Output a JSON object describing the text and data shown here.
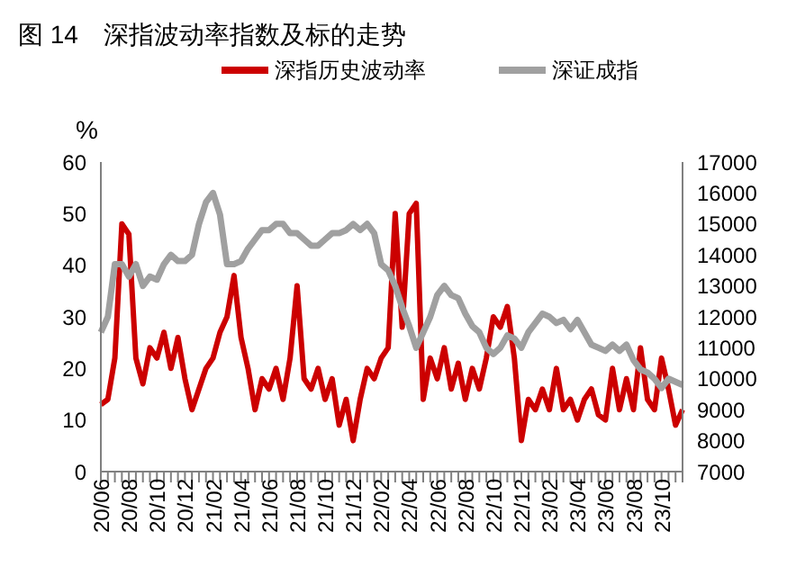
{
  "chart_data": {
    "type": "line",
    "title": "图 14　深指波动率指数及标的走势",
    "ylabel": "%",
    "legend": "top",
    "categories": [
      "20/06",
      null,
      null,
      null,
      "20/08",
      null,
      null,
      null,
      "20/10",
      null,
      null,
      null,
      "20/12",
      null,
      null,
      null,
      "21/02",
      null,
      null,
      null,
      "21/04",
      null,
      null,
      null,
      "21/06",
      null,
      null,
      null,
      "21/08",
      null,
      null,
      null,
      "21/10",
      null,
      null,
      null,
      "21/12",
      null,
      null,
      null,
      "22/02",
      null,
      null,
      null,
      "22/04",
      null,
      null,
      null,
      "22/06",
      null,
      null,
      null,
      "22/08",
      null,
      null,
      null,
      "22/10",
      null,
      null,
      null,
      "22/12",
      null,
      null,
      null,
      "23/02",
      null,
      null,
      null,
      "23/04",
      null,
      null,
      null,
      "23/06",
      null,
      null,
      null,
      "23/08",
      null,
      null,
      null,
      "23/10",
      null,
      null,
      null
    ],
    "ylim": [
      0,
      60
    ],
    "yticks": [
      0,
      10,
      20,
      30,
      40,
      50,
      60
    ],
    "y2lim": [
      7000,
      17000
    ],
    "y2ticks": [
      7000,
      8000,
      9000,
      10000,
      11000,
      12000,
      13000,
      14000,
      15000,
      16000,
      17000
    ],
    "series": [
      {
        "name": "深指历史波动率",
        "color": "#cc0000",
        "values": [
          13,
          14,
          22,
          48,
          46,
          22,
          17,
          24,
          22,
          27,
          20,
          26,
          18,
          12,
          16,
          20,
          22,
          27,
          30,
          38,
          26,
          20,
          12,
          18,
          16,
          20,
          14,
          22,
          36,
          18,
          16,
          20,
          14,
          18,
          9,
          14,
          6,
          14,
          20,
          18,
          22,
          24,
          50,
          28,
          50,
          52,
          14,
          22,
          18,
          24,
          16,
          21,
          14,
          20,
          16,
          22,
          30,
          28,
          32,
          22,
          6,
          14,
          12,
          16,
          12,
          20,
          12,
          14,
          10,
          14,
          16,
          11,
          10,
          20,
          12,
          18,
          12,
          24,
          14,
          12,
          22,
          16,
          9,
          12
        ]
      },
      {
        "name": "深证成指",
        "color": "#a0a0a0",
        "axis": "y2",
        "values": [
          11500,
          12000,
          13700,
          13700,
          13300,
          13700,
          13000,
          13300,
          13200,
          13700,
          14000,
          13800,
          13800,
          14000,
          15000,
          15700,
          16000,
          15300,
          13700,
          13700,
          13800,
          14200,
          14500,
          14800,
          14800,
          15000,
          15000,
          14700,
          14700,
          14500,
          14300,
          14300,
          14500,
          14700,
          14700,
          14800,
          15000,
          14800,
          15000,
          14700,
          13700,
          13500,
          13000,
          12300,
          11700,
          11000,
          11500,
          12000,
          12700,
          13000,
          12700,
          12600,
          12100,
          11700,
          11500,
          11000,
          10800,
          11000,
          11400,
          11300,
          11000,
          11500,
          11800,
          12100,
          12000,
          11800,
          11900,
          11600,
          11900,
          11500,
          11100,
          11000,
          10900,
          11100,
          10900,
          11100,
          10600,
          10300,
          10200,
          10000,
          9700,
          10000,
          9900,
          9800
        ]
      }
    ]
  }
}
